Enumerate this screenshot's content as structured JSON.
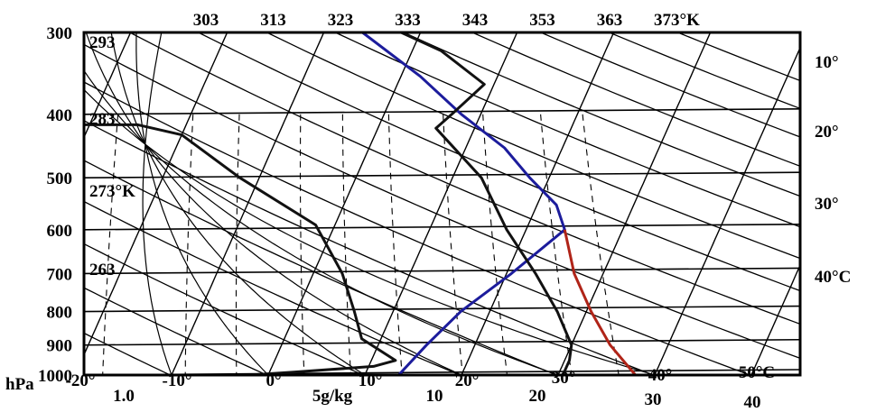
{
  "chart_data": {
    "type": "line",
    "diagram": "skew-T log-P thermodynamic diagram",
    "pressure_axis": {
      "unit_label": "hPa",
      "ticks": [
        300,
        400,
        500,
        600,
        700,
        800,
        900,
        1000
      ],
      "labels": [
        "300",
        "400",
        "500",
        "600",
        "700",
        "800",
        "900",
        "1000"
      ],
      "scale": "log",
      "ylim": [
        1000,
        300
      ]
    },
    "temperature_axis": {
      "ticks": [
        -20,
        -10,
        0,
        10,
        20,
        30,
        40,
        50
      ],
      "labels": [
        "-20°",
        "-10°",
        "0°",
        "10°",
        "20°",
        "30°",
        "40°",
        "50°C"
      ]
    },
    "right_temperature_labels": [
      {
        "value": 10,
        "label": "10°"
      },
      {
        "value": 20,
        "label": "20°"
      },
      {
        "value": 30,
        "label": "30°"
      },
      {
        "value": 40,
        "label": "40°C"
      }
    ],
    "top_theta_labels": [
      {
        "value": 303,
        "label": "303"
      },
      {
        "value": 313,
        "label": "313"
      },
      {
        "value": 323,
        "label": "323"
      },
      {
        "value": 333,
        "label": "333"
      },
      {
        "value": 343,
        "label": "343"
      },
      {
        "value": 353,
        "label": "353"
      },
      {
        "value": 363,
        "label": "363"
      },
      {
        "value": 373,
        "label": "373°K"
      }
    ],
    "left_theta_labels": [
      {
        "value": 293,
        "label": "293"
      },
      {
        "value": 283,
        "label": "283"
      },
      {
        "value": 273,
        "label": "273°K"
      },
      {
        "value": 263,
        "label": "263"
      }
    ],
    "mixing_ratio_labels": [
      {
        "value": 1,
        "label": "1.0"
      },
      {
        "value": 5,
        "label": "5g/kg"
      },
      {
        "value": 10,
        "label": "10"
      },
      {
        "value": 20,
        "label": "20"
      },
      {
        "value": 30,
        "label": "30"
      },
      {
        "value": 40,
        "label": "40"
      }
    ],
    "series": [
      {
        "color": "#1c1c9c",
        "points": [
          [
            1000,
            13.5
          ],
          [
            900,
            15
          ],
          [
            800,
            17
          ],
          [
            700,
            20.5
          ],
          [
            600,
            24
          ],
          [
            550,
            22
          ],
          [
            500,
            18
          ],
          [
            450,
            14
          ],
          [
            400,
            8
          ],
          [
            350,
            2
          ],
          [
            300,
            -6
          ]
        ]
      },
      {
        "color": "#b02418",
        "points": [
          [
            600,
            24
          ],
          [
            700,
            27
          ],
          [
            800,
            30.5
          ],
          [
            900,
            34
          ],
          [
            1000,
            38
          ]
        ]
      },
      {
        "color": "#111111",
        "points": [
          [
            1000,
            -2
          ],
          [
            990,
            2.5
          ],
          [
            970,
            10.5
          ],
          [
            950,
            12.5
          ],
          [
            880,
            8
          ],
          [
            800,
            6
          ],
          [
            700,
            3
          ],
          [
            590,
            -2
          ],
          [
            500,
            -12
          ],
          [
            430,
            -20
          ],
          [
            415,
            -25
          ],
          [
            415,
            -31
          ]
        ]
      },
      {
        "color": "#111111",
        "points": [
          [
            1000,
            30.5
          ],
          [
            950,
            30.5
          ],
          [
            900,
            30
          ],
          [
            800,
            27
          ],
          [
            700,
            23
          ],
          [
            600,
            18
          ],
          [
            500,
            13
          ],
          [
            420,
            6
          ],
          [
            400,
            7
          ],
          [
            360,
            9
          ],
          [
            320,
            3
          ],
          [
            300,
            -2
          ]
        ]
      }
    ],
    "grid": true
  }
}
